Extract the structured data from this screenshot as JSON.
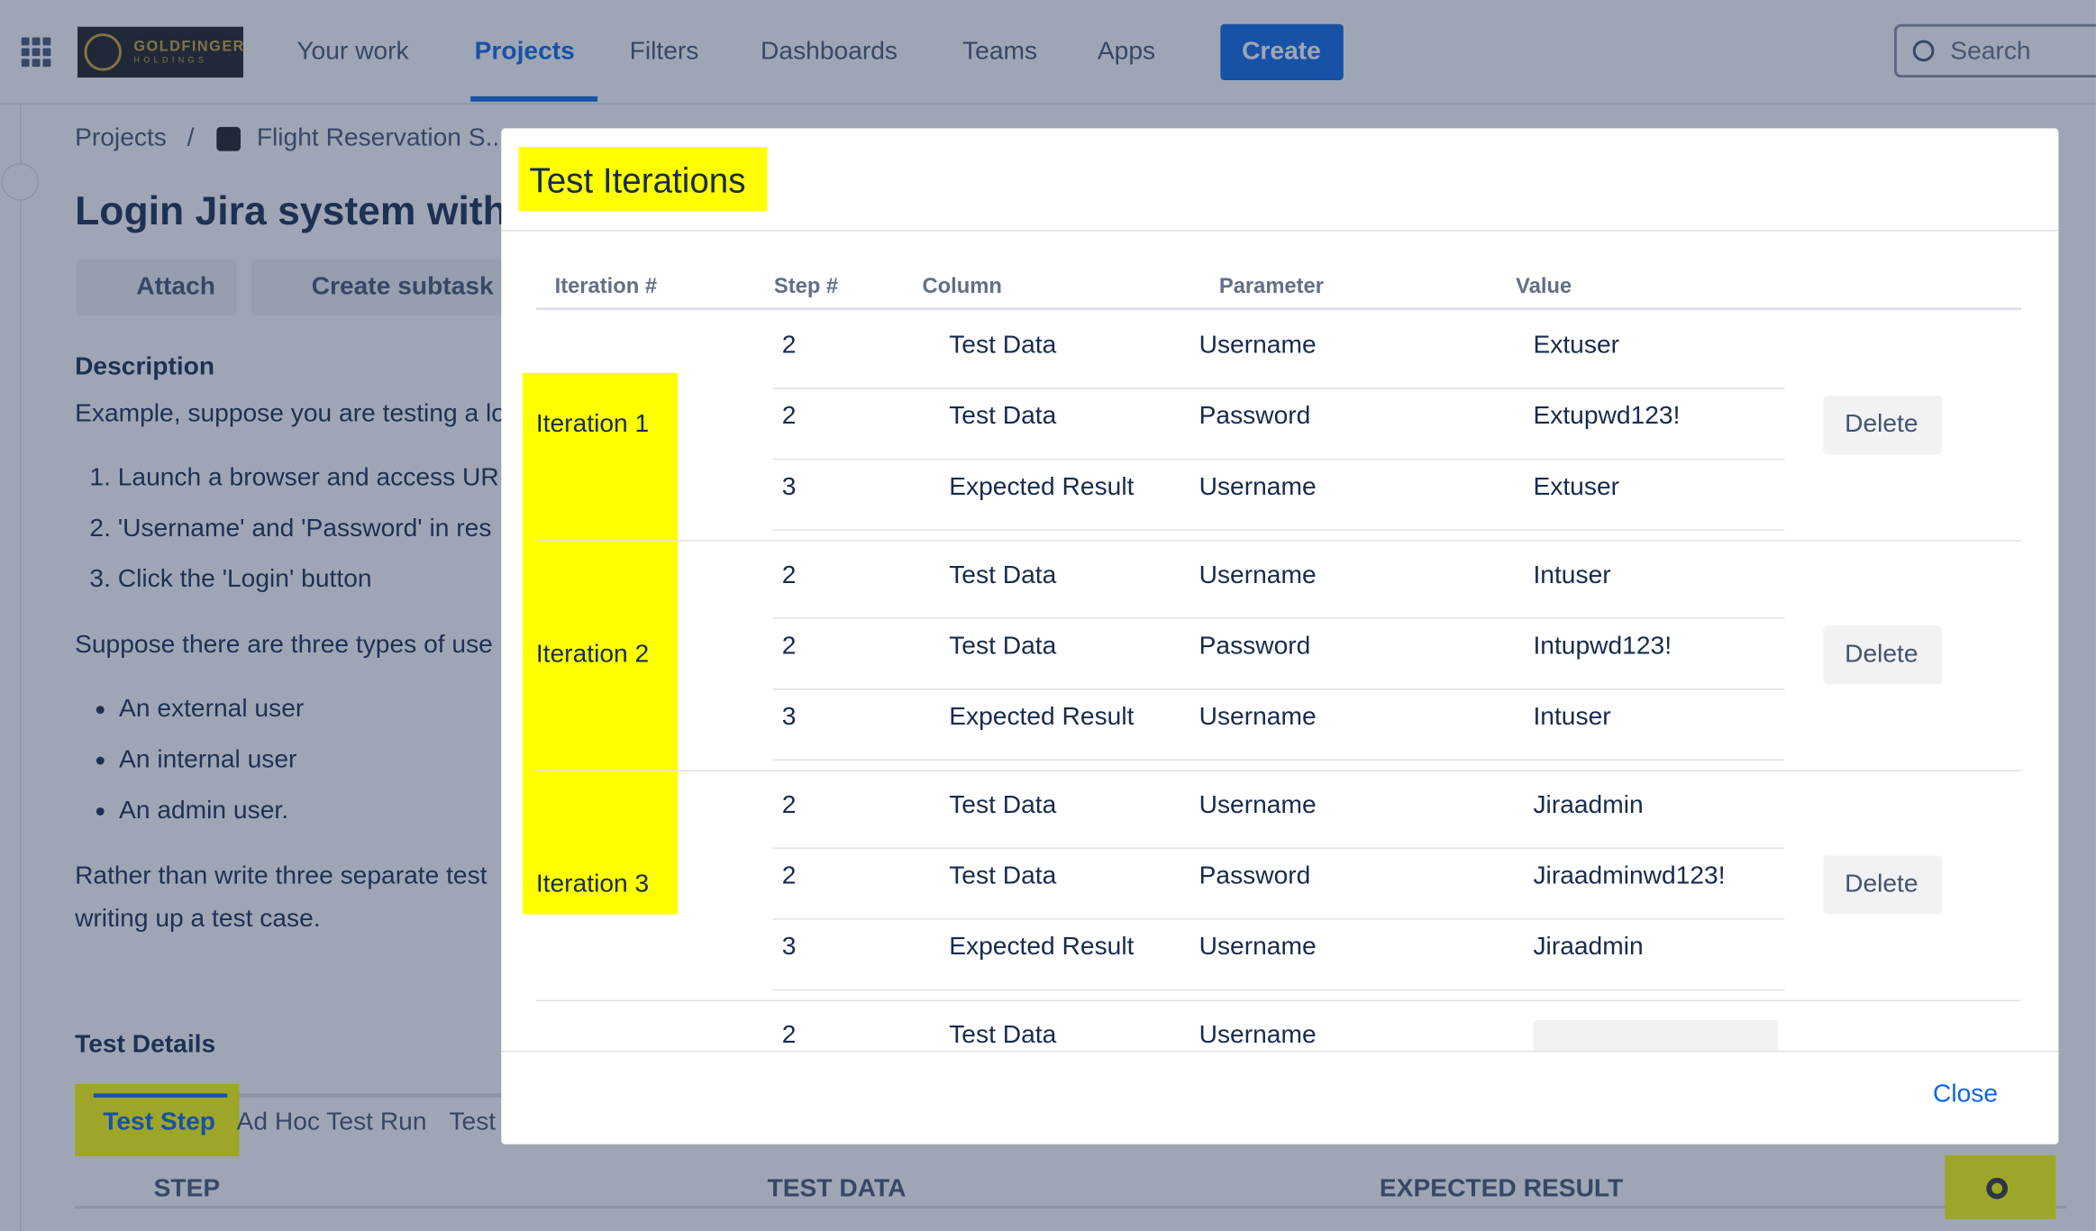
{
  "nav": {
    "logo": "GOLDFINGER",
    "logo_sub": "HOLDINGS",
    "items": [
      "Your work",
      "Projects",
      "Filters",
      "Dashboards",
      "Teams",
      "Apps"
    ],
    "create": "Create",
    "search": "Search"
  },
  "breadcrumb": [
    "Projects",
    "Flight Reservation S..."
  ],
  "issue": {
    "title": "Login Jira system with",
    "actions": [
      "Attach",
      "Create subtask"
    ],
    "description_heading": "Description",
    "intro": "Example, suppose you are testing a lo",
    "steps": [
      "1. Launch a browser and access UR",
      "2. 'Username' and 'Password' in res",
      "3. Click the 'Login' button"
    ],
    "users_intro": "Suppose there are three types of use",
    "users": [
      "An external user",
      "An internal user",
      "An admin user."
    ],
    "closing": [
      "Rather than write three separate test",
      "writing up a test case."
    ]
  },
  "test_details": {
    "heading": "Test Details",
    "tabs": [
      "Test Step",
      "Ad Hoc Test Run",
      "Test"
    ],
    "columns": [
      "STEP",
      "TEST DATA",
      "EXPECTED RESULT"
    ]
  },
  "modal": {
    "title": "Test Iterations",
    "columns": [
      "Iteration #",
      "Step #",
      "Column",
      "Parameter",
      "Value"
    ],
    "iterations": [
      {
        "label": "Iteration 1",
        "action": "Delete",
        "rows": [
          [
            2,
            "Test Data",
            "Username",
            "Extuser"
          ],
          [
            2,
            "Test Data",
            "Password",
            "Extupwd123!"
          ],
          [
            3,
            "Expected Result",
            "Username",
            "Extuser"
          ]
        ]
      },
      {
        "label": "Iteration 2",
        "action": "Delete",
        "rows": [
          [
            2,
            "Test Data",
            "Username",
            "Intuser"
          ],
          [
            2,
            "Test Data",
            "Password",
            "Intupwd123!"
          ],
          [
            3,
            "Expected Result",
            "Username",
            "Intuser"
          ]
        ]
      },
      {
        "label": "Iteration 3",
        "action": "Delete",
        "rows": [
          [
            2,
            "Test Data",
            "Username",
            "Jiraadmin"
          ],
          [
            2,
            "Test Data",
            "Password",
            "Jiraadminwd123!"
          ],
          [
            3,
            "Expected Result",
            "Username",
            "Jiraadmin"
          ]
        ]
      }
    ],
    "partial_row": [
      2,
      "Test Data",
      "Username"
    ],
    "close": "Close"
  }
}
